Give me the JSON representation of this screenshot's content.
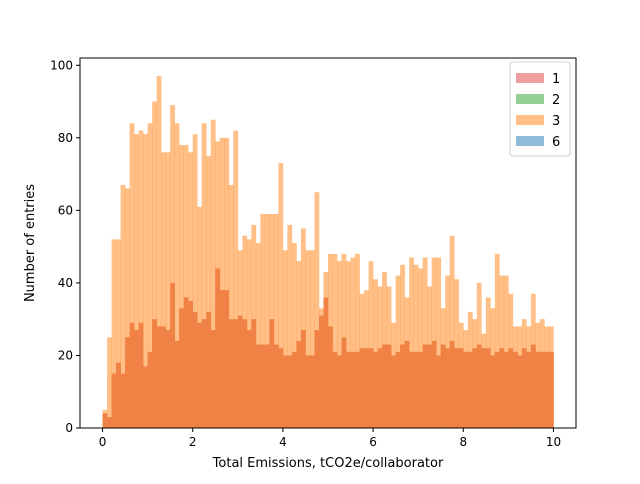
{
  "chart_data": {
    "type": "bar",
    "subtype": "overlaid-histogram",
    "title": "",
    "xlabel": "Total Emissions, tCO2e/collaborator",
    "ylabel": "Number of entries",
    "xlim": [
      -0.5,
      10.5
    ],
    "ylim": [
      0,
      102
    ],
    "xticks": [
      0,
      2,
      4,
      6,
      8,
      10
    ],
    "yticks": [
      0,
      20,
      40,
      60,
      80,
      100
    ],
    "bin_edges": {
      "start": 0,
      "end": 10,
      "count": 100
    },
    "legend": {
      "placement": "top-right"
    },
    "series": [
      {
        "name": "1",
        "color": "#d62728",
        "alpha": 0.45,
        "values": [
          0,
          0,
          0,
          0,
          0,
          0,
          0,
          0,
          0,
          0,
          0,
          0,
          0,
          0,
          0,
          0,
          0,
          0,
          0,
          0,
          0,
          0,
          0,
          0,
          0,
          0,
          0,
          0,
          0,
          0,
          0,
          0,
          0,
          0,
          0,
          0,
          0,
          0,
          0,
          0,
          0,
          0,
          0,
          0,
          0,
          0,
          0,
          0,
          0,
          0,
          0,
          0,
          0,
          0,
          0,
          0,
          0,
          0,
          0,
          0,
          0,
          0,
          0,
          0,
          0,
          0,
          0,
          0,
          0,
          0,
          0,
          0,
          0,
          0,
          0,
          0,
          0,
          0,
          0,
          0,
          0,
          0,
          0,
          0,
          0,
          0,
          0,
          0,
          0,
          0,
          0,
          0,
          0,
          0,
          0,
          0,
          0,
          0,
          0,
          0
        ]
      },
      {
        "name": "2",
        "color": "#2ca02c",
        "alpha": 0.5,
        "values": [
          0,
          0,
          0,
          0,
          0,
          0,
          0,
          0,
          0,
          0,
          0,
          0,
          0,
          0,
          0,
          0,
          0,
          0,
          0,
          0,
          0,
          0,
          0,
          0,
          0,
          0,
          0,
          0,
          0,
          0,
          0,
          0,
          0,
          0,
          0,
          0,
          0,
          0,
          0,
          0,
          0,
          0,
          0,
          0,
          0,
          0,
          0,
          0,
          0,
          0,
          0,
          0,
          0,
          0,
          0,
          0,
          0,
          0,
          0,
          0,
          0,
          0,
          0,
          0,
          0,
          0,
          0,
          0,
          0,
          0,
          0,
          0,
          0,
          0,
          0,
          0,
          0,
          0,
          0,
          0,
          0,
          0,
          0,
          0,
          0,
          0,
          0,
          0,
          0,
          0,
          0,
          0,
          0,
          0,
          0,
          0,
          0,
          0,
          0,
          0
        ]
      },
      {
        "name": "3",
        "color": "#ff7f0e",
        "alpha": 0.5,
        "values": [
          5,
          25,
          52,
          52,
          67,
          66,
          84,
          81,
          82,
          81,
          84,
          90,
          97,
          76,
          76,
          89,
          84,
          78,
          78,
          76,
          81,
          61,
          84,
          75,
          85,
          79,
          80,
          80,
          67,
          82,
          49,
          53,
          52,
          56,
          51,
          59,
          59,
          59,
          59,
          73,
          49,
          56,
          51,
          46,
          55,
          49,
          49,
          65,
          33,
          43,
          48,
          48,
          46,
          48,
          46,
          47,
          48,
          37,
          38,
          46,
          41,
          39,
          43,
          39,
          29,
          42,
          45,
          36,
          47,
          45,
          44,
          47,
          39,
          47,
          47,
          33,
          42,
          53,
          41,
          29,
          27,
          32,
          30,
          40,
          26,
          36,
          33,
          48,
          42,
          42,
          37,
          28,
          28,
          30,
          28,
          37,
          29,
          30,
          28,
          28
        ]
      },
      {
        "name": "6",
        "color": "#1f77b4",
        "alpha": 0.5,
        "values": [
          0,
          0,
          0,
          0,
          0,
          0,
          0,
          0,
          0,
          0,
          0,
          0,
          0,
          0,
          0,
          0,
          0,
          0,
          0,
          0,
          0,
          0,
          0,
          0,
          0,
          0,
          0,
          0,
          0,
          0,
          0,
          0,
          0,
          0,
          0,
          0,
          0,
          0,
          0,
          0,
          0,
          0,
          0,
          0,
          0,
          0,
          0,
          0,
          0,
          0,
          0,
          0,
          0,
          0,
          0,
          0,
          0,
          0,
          0,
          0,
          0,
          0,
          0,
          0,
          0,
          0,
          0,
          0,
          0,
          0,
          0,
          0,
          0,
          0,
          0,
          0,
          0,
          0,
          0,
          0,
          0,
          0,
          0,
          0,
          0,
          0,
          0,
          0,
          0,
          0,
          0,
          0,
          0,
          0,
          0,
          0,
          0,
          0,
          0,
          0
        ]
      }
    ],
    "dark_overlay": {
      "color": "#ef8244",
      "values": [
        4,
        3,
        15,
        18,
        15,
        25,
        29,
        27,
        29,
        17,
        21,
        30,
        28,
        28,
        27,
        40,
        24,
        33,
        36,
        35,
        32,
        29,
        30,
        32,
        27,
        44,
        38,
        38,
        30,
        30,
        31,
        30,
        27,
        30,
        23,
        23,
        23,
        30,
        23,
        22,
        20,
        20,
        21,
        24,
        27,
        20,
        20,
        27,
        31,
        36,
        28,
        21,
        20,
        25,
        21,
        21,
        21,
        22,
        22,
        22,
        21,
        22,
        23,
        23,
        20,
        21,
        23,
        24,
        21,
        21,
        21,
        23,
        23,
        24,
        20,
        23,
        22,
        24,
        22,
        22,
        21,
        21,
        22,
        23,
        22,
        22,
        20,
        21,
        22,
        21,
        22,
        21,
        20,
        22,
        21,
        23,
        21,
        21,
        21,
        21
      ],
      "note": ""
    }
  }
}
